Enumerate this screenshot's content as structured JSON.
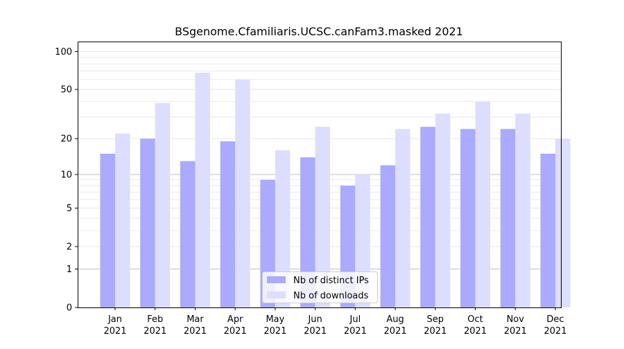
{
  "chart_data": {
    "type": "bar",
    "title": "BSgenome.Cfamiliaris.UCSC.canFam3.masked 2021",
    "xlabel": "",
    "ylabel": "",
    "y_scale": "symlog",
    "ylim": [
      0,
      120
    ],
    "yticks": [
      0,
      1,
      2,
      5,
      10,
      20,
      50,
      100
    ],
    "ytick_labels": [
      "0",
      "1",
      "2",
      "5",
      "10",
      "20",
      "50",
      "100"
    ],
    "categories": [
      "Jan",
      "Feb",
      "Mar",
      "Apr",
      "May",
      "Jun",
      "Jul",
      "Aug",
      "Sep",
      "Oct",
      "Nov",
      "Dec"
    ],
    "category_years": [
      "2021",
      "2021",
      "2021",
      "2021",
      "2021",
      "2021",
      "2021",
      "2021",
      "2021",
      "2021",
      "2021",
      "2021"
    ],
    "series": [
      {
        "name": "Nb of distinct IPs",
        "color": "#aaaaff",
        "values": [
          15,
          20,
          13,
          19,
          9,
          14,
          8,
          12,
          25,
          24,
          24,
          15
        ]
      },
      {
        "name": "Nb of downloads",
        "color": "#ddddff",
        "values": [
          22,
          39,
          68,
          60,
          16,
          25,
          10,
          24,
          32,
          40,
          32,
          20
        ]
      }
    ],
    "legend_position": "bottom-center",
    "grid": true
  }
}
